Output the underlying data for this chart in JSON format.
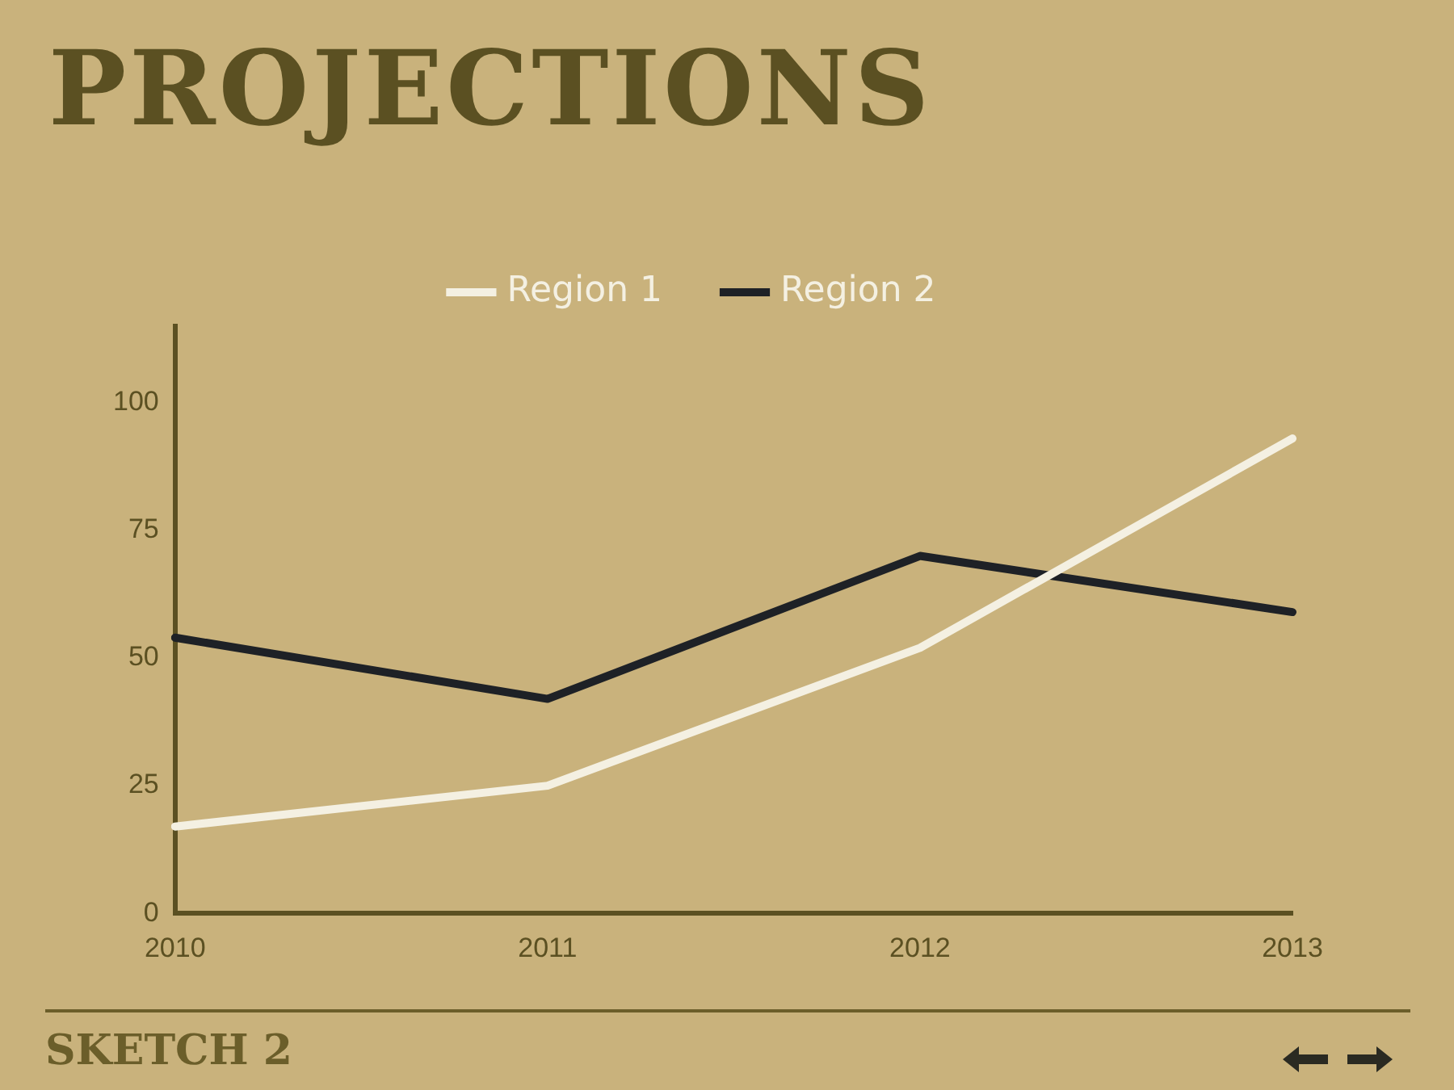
{
  "chart_data": {
    "type": "line",
    "title": "PROJECTIONS",
    "categories": [
      "2010",
      "2011",
      "2012",
      "2013"
    ],
    "series": [
      {
        "name": "Region 1",
        "color": "#f4f0e2",
        "values": [
          17,
          25,
          52,
          93
        ]
      },
      {
        "name": "Region 2",
        "color": "#1e2126",
        "values": [
          54,
          42,
          70,
          59
        ]
      }
    ],
    "ylim": [
      0,
      115
    ],
    "yticks": [
      0,
      25,
      50,
      75,
      100
    ],
    "grid": false,
    "legend": "top",
    "marker": "none",
    "line_style": "solid",
    "annotations": [
      "SKETCH 2"
    ]
  }
}
